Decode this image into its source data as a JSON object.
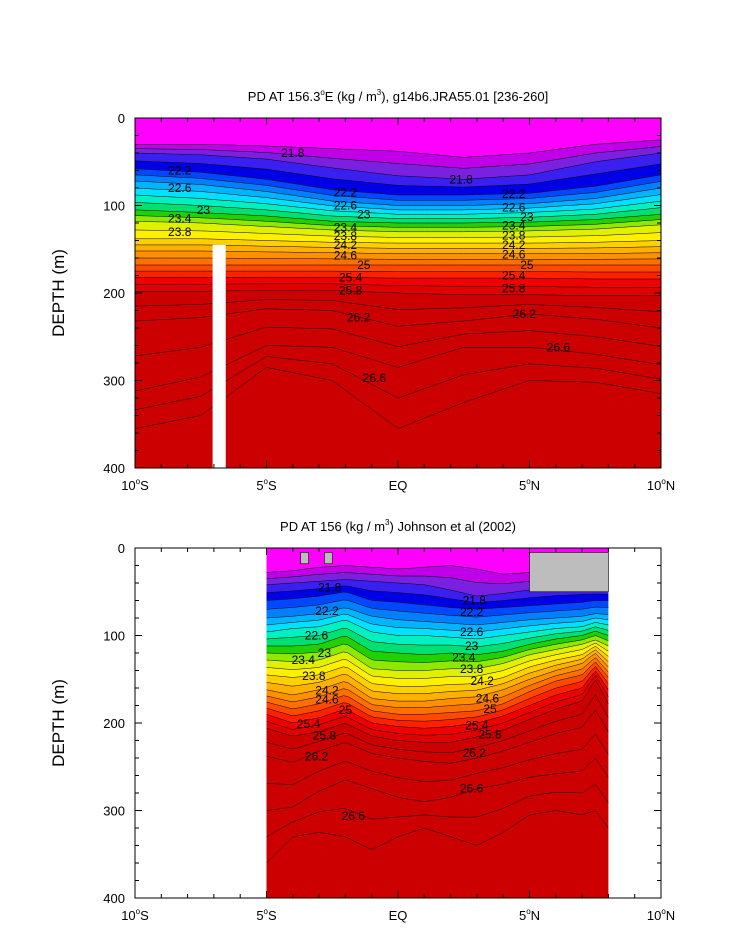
{
  "colors": {
    "contour_fill_low_to_high": [
      "#ff00ff",
      "#c000e8",
      "#7a20e0",
      "#3a20f0",
      "#0000e6",
      "#0048ff",
      "#0080ff",
      "#00b4ff",
      "#00e0ff",
      "#00f0c0",
      "#00e070",
      "#20d000",
      "#8ee800",
      "#e0f000",
      "#fff000",
      "#ffd000",
      "#ffb000",
      "#ff9000",
      "#ff7000",
      "#ff4800",
      "#ff2000",
      "#f00000",
      "#e00000",
      "#cc0000"
    ],
    "missing_fill": "#bdbdbd",
    "mask_fill": "#ffffff"
  },
  "chart_data": [
    {
      "type": "heatmap",
      "title": "PD AT 156.3°E (kg / m³), g14b6.JRA55.01 [236-260]",
      "title_parts": {
        "before_deg": "PD AT 156.3",
        "deg": "o",
        "mid": "E (kg / m",
        "cube": "3",
        "after": "), g14b6.JRA55.01 [236-260]"
      },
      "xlabel": "",
      "ylabel": "DEPTH (m)",
      "xlim": [
        -10,
        10
      ],
      "ylim": [
        0,
        400
      ],
      "y_inverted": true,
      "x_ticks": [
        {
          "value": -10,
          "num": "10",
          "deg": "o",
          "hemi": "S"
        },
        {
          "value": -5,
          "num": "5",
          "deg": "o",
          "hemi": "S"
        },
        {
          "value": 0,
          "num": "EQ",
          "deg": "",
          "hemi": ""
        },
        {
          "value": 5,
          "num": "5",
          "deg": "o",
          "hemi": "N"
        },
        {
          "value": 10,
          "num": "10",
          "deg": "o",
          "hemi": "N"
        }
      ],
      "y_ticks": [
        "0",
        "100",
        "200",
        "300",
        "400"
      ],
      "data_extent_x": [
        -10,
        10
      ],
      "contour_levels": [
        21.6,
        21.8,
        22.0,
        22.2,
        22.4,
        22.6,
        22.8,
        23.0,
        23.2,
        23.4,
        23.6,
        23.8,
        24.0,
        24.2,
        24.4,
        24.6,
        24.8,
        25.0,
        25.2,
        25.4,
        25.6,
        25.8,
        26.0,
        26.2,
        26.4,
        26.6,
        26.8
      ],
      "isopycnal_depths": {
        "x": [
          -10,
          -7.5,
          -5,
          -2.5,
          0,
          2.5,
          5,
          7.5,
          10
        ],
        "21.6": [
          30,
          30,
          32,
          35,
          38,
          45,
          40,
          30,
          25
        ],
        "21.8": [
          40,
          42,
          47,
          57,
          66,
          70,
          65,
          50,
          40
        ],
        "22.2": [
          58,
          62,
          70,
          82,
          88,
          88,
          86,
          78,
          65
        ],
        "22.6": [
          72,
          76,
          84,
          95,
          100,
          100,
          98,
          92,
          80
        ],
        "23": [
          88,
          92,
          98,
          106,
          110,
          110,
          108,
          104,
          95
        ],
        "23.4": [
          105,
          108,
          112,
          118,
          120,
          120,
          119,
          116,
          110
        ],
        "23.8": [
          118,
          120,
          124,
          128,
          130,
          130,
          129,
          127,
          122
        ],
        "24.2": [
          138,
          138,
          140,
          142,
          143,
          143,
          143,
          142,
          140
        ],
        "24.6": [
          152,
          152,
          153,
          154,
          155,
          155,
          155,
          155,
          154
        ],
        "25": [
          168,
          168,
          168,
          168,
          168,
          168,
          168,
          168,
          168
        ],
        "25.4": [
          182,
          182,
          182,
          182,
          183,
          183,
          183,
          184,
          184
        ],
        "25.8": [
          198,
          198,
          197,
          197,
          200,
          202,
          202,
          203,
          203
        ],
        "26.2": [
          232,
          228,
          218,
          220,
          238,
          232,
          224,
          230,
          240
        ],
        "26.6": [
          312,
          296,
          260,
          262,
          285,
          262,
          262,
          270,
          282
        ],
        "26.8": [
          355,
          340,
          285,
          300,
          355,
          325,
          300,
          302,
          315
        ]
      },
      "labels": [
        {
          "text": "21.8",
          "x": -4.0,
          "y": 40
        },
        {
          "text": "21.8",
          "x": 2.4,
          "y": 70
        },
        {
          "text": "22.2",
          "x": -8.3,
          "y": 60
        },
        {
          "text": "22.6",
          "x": -8.3,
          "y": 80
        },
        {
          "text": "23",
          "x": -7.4,
          "y": 105
        },
        {
          "text": "23.4",
          "x": -8.3,
          "y": 115
        },
        {
          "text": "23.8",
          "x": -8.3,
          "y": 130
        },
        {
          "text": "22.2",
          "x": -2.0,
          "y": 85
        },
        {
          "text": "22.6",
          "x": -2.0,
          "y": 100
        },
        {
          "text": "23",
          "x": -1.3,
          "y": 110
        },
        {
          "text": "23.4",
          "x": -2.0,
          "y": 125
        },
        {
          "text": "23.8",
          "x": -2.0,
          "y": 135
        },
        {
          "text": "24.2",
          "x": -2.0,
          "y": 145
        },
        {
          "text": "24.6",
          "x": -2.0,
          "y": 157
        },
        {
          "text": "25",
          "x": -1.3,
          "y": 168
        },
        {
          "text": "25.4",
          "x": -1.8,
          "y": 182
        },
        {
          "text": "25.8",
          "x": -1.8,
          "y": 197
        },
        {
          "text": "26.2",
          "x": -1.5,
          "y": 228
        },
        {
          "text": "26.6",
          "x": -0.9,
          "y": 297
        },
        {
          "text": "22.2",
          "x": 4.4,
          "y": 87
        },
        {
          "text": "22.6",
          "x": 4.4,
          "y": 102
        },
        {
          "text": "23",
          "x": 4.9,
          "y": 113
        },
        {
          "text": "23.4",
          "x": 4.4,
          "y": 123
        },
        {
          "text": "23.8",
          "x": 4.4,
          "y": 134
        },
        {
          "text": "24.2",
          "x": 4.4,
          "y": 145
        },
        {
          "text": "24.6",
          "x": 4.4,
          "y": 156
        },
        {
          "text": "25",
          "x": 4.9,
          "y": 168
        },
        {
          "text": "25.4",
          "x": 4.4,
          "y": 180
        },
        {
          "text": "25.8",
          "x": 4.4,
          "y": 195
        },
        {
          "text": "26.2",
          "x": 4.8,
          "y": 224
        },
        {
          "text": "26.6",
          "x": 6.1,
          "y": 262
        }
      ],
      "mask_regions": [
        {
          "x": [
            -7.05,
            -6.55
          ],
          "y": [
            145,
            400
          ]
        }
      ],
      "missing_regions": []
    },
    {
      "type": "heatmap",
      "title": "PD AT 156 (kg / m³) Johnson et al (2002)",
      "title_parts": {
        "before_deg": "PD AT 156",
        "deg": "",
        "mid": " (kg / m",
        "cube": "3",
        "after": ") Johnson et al (2002)"
      },
      "xlabel": "",
      "ylabel": "DEPTH (m)",
      "xlim": [
        -10,
        10
      ],
      "ylim": [
        0,
        400
      ],
      "y_inverted": true,
      "x_ticks": [
        {
          "value": -10,
          "num": "10",
          "deg": "o",
          "hemi": "S"
        },
        {
          "value": -5,
          "num": "5",
          "deg": "o",
          "hemi": "S"
        },
        {
          "value": 0,
          "num": "EQ",
          "deg": "",
          "hemi": ""
        },
        {
          "value": 5,
          "num": "5",
          "deg": "o",
          "hemi": "N"
        },
        {
          "value": 10,
          "num": "10",
          "deg": "o",
          "hemi": "N"
        }
      ],
      "y_ticks": [
        "0",
        "100",
        "200",
        "300",
        "400"
      ],
      "data_extent_x": [
        -5,
        8
      ],
      "contour_levels": [
        21.6,
        21.8,
        22.0,
        22.2,
        22.4,
        22.6,
        22.8,
        23.0,
        23.2,
        23.4,
        23.6,
        23.8,
        24.0,
        24.2,
        24.4,
        24.6,
        24.8,
        25.0,
        25.2,
        25.4,
        25.6,
        25.8,
        26.0,
        26.2,
        26.4,
        26.6,
        26.8
      ],
      "isopycnal_depths": {
        "x": [
          -5,
          -4,
          -3,
          -2,
          -1,
          0,
          1,
          2,
          3,
          4,
          5,
          6,
          7,
          7.5,
          8
        ],
        "21.6": [
          28,
          26,
          22,
          20,
          22,
          24,
          22,
          20,
          24,
          30,
          28,
          25,
          24,
          28,
          30
        ],
        "21.8": [
          42,
          40,
          38,
          36,
          38,
          40,
          42,
          48,
          55,
          52,
          48,
          45,
          44,
          45,
          46
        ],
        "22.2": [
          60,
          58,
          55,
          50,
          60,
          62,
          65,
          68,
          70,
          68,
          66,
          64,
          62,
          60,
          60
        ],
        "22.6": [
          80,
          78,
          75,
          68,
          78,
          82,
          84,
          86,
          88,
          85,
          82,
          80,
          78,
          75,
          76
        ],
        "23": [
          96,
          92,
          90,
          82,
          96,
          100,
          100,
          102,
          104,
          100,
          96,
          92,
          90,
          85,
          88
        ],
        "23.4": [
          112,
          112,
          110,
          100,
          118,
          120,
          122,
          120,
          122,
          118,
          110,
          104,
          100,
          95,
          100
        ],
        "23.8": [
          128,
          130,
          128,
          118,
          138,
          140,
          140,
          138,
          138,
          132,
          122,
          116,
          110,
          105,
          112
        ],
        "24.2": [
          145,
          148,
          145,
          135,
          155,
          158,
          158,
          156,
          155,
          148,
          136,
          128,
          122,
          112,
          124
        ],
        "24.6": [
          162,
          168,
          162,
          152,
          172,
          175,
          175,
          172,
          170,
          162,
          150,
          140,
          132,
          120,
          136
        ],
        "25": [
          176,
          184,
          178,
          168,
          186,
          190,
          190,
          188,
          186,
          178,
          164,
          152,
          145,
          130,
          148
        ],
        "25.4": [
          190,
          200,
          194,
          184,
          200,
          204,
          206,
          204,
          200,
          192,
          180,
          168,
          160,
          140,
          162
        ],
        "25.8": [
          206,
          215,
          210,
          200,
          215,
          220,
          222,
          222,
          216,
          208,
          196,
          184,
          175,
          150,
          178
        ],
        "26.2": [
          238,
          245,
          232,
          222,
          235,
          240,
          244,
          246,
          240,
          232,
          222,
          212,
          205,
          185,
          210
        ],
        "26.6": [
          300,
          296,
          278,
          265,
          275,
          285,
          290,
          285,
          275,
          270,
          262,
          258,
          255,
          240,
          262
        ],
        "26.8": [
          360,
          330,
          325,
          330,
          345,
          330,
          320,
          330,
          340,
          325,
          305,
          300,
          305,
          300,
          320
        ]
      },
      "labels": [
        {
          "text": "21.8",
          "x": -2.6,
          "y": 45
        },
        {
          "text": "21.8",
          "x": 2.9,
          "y": 60
        },
        {
          "text": "22.2",
          "x": -2.7,
          "y": 72
        },
        {
          "text": "22.2",
          "x": 2.8,
          "y": 73
        },
        {
          "text": "22.6",
          "x": -3.1,
          "y": 100
        },
        {
          "text": "22.6",
          "x": 2.8,
          "y": 96
        },
        {
          "text": "23",
          "x": -2.8,
          "y": 120
        },
        {
          "text": "23",
          "x": 2.8,
          "y": 112
        },
        {
          "text": "23.4",
          "x": -3.6,
          "y": 128
        },
        {
          "text": "23.4",
          "x": 2.5,
          "y": 125
        },
        {
          "text": "23.8",
          "x": -3.2,
          "y": 146
        },
        {
          "text": "23.8",
          "x": 2.8,
          "y": 138
        },
        {
          "text": "24.2",
          "x": -2.7,
          "y": 163
        },
        {
          "text": "24.2",
          "x": 3.2,
          "y": 152
        },
        {
          "text": "24.6",
          "x": -2.7,
          "y": 173
        },
        {
          "text": "24.6",
          "x": 3.4,
          "y": 172
        },
        {
          "text": "25",
          "x": -2.0,
          "y": 185
        },
        {
          "text": "25",
          "x": 3.5,
          "y": 184
        },
        {
          "text": "25.4",
          "x": -3.4,
          "y": 201
        },
        {
          "text": "25.4",
          "x": 3.0,
          "y": 203
        },
        {
          "text": "25.8",
          "x": -2.8,
          "y": 214
        },
        {
          "text": "25.8",
          "x": 3.5,
          "y": 213
        },
        {
          "text": "26.2",
          "x": -3.1,
          "y": 238
        },
        {
          "text": "26.2",
          "x": 2.9,
          "y": 234
        },
        {
          "text": "26.6",
          "x": -1.7,
          "y": 306
        },
        {
          "text": "26.6",
          "x": 2.8,
          "y": 275
        }
      ],
      "mask_regions": [],
      "missing_regions": [
        {
          "x": [
            -3.7,
            -3.4
          ],
          "y": [
            5,
            18
          ]
        },
        {
          "x": [
            -2.8,
            -2.5
          ],
          "y": [
            5,
            18
          ]
        },
        {
          "x": [
            5.0,
            8.0
          ],
          "y": [
            5,
            50
          ]
        }
      ]
    }
  ]
}
